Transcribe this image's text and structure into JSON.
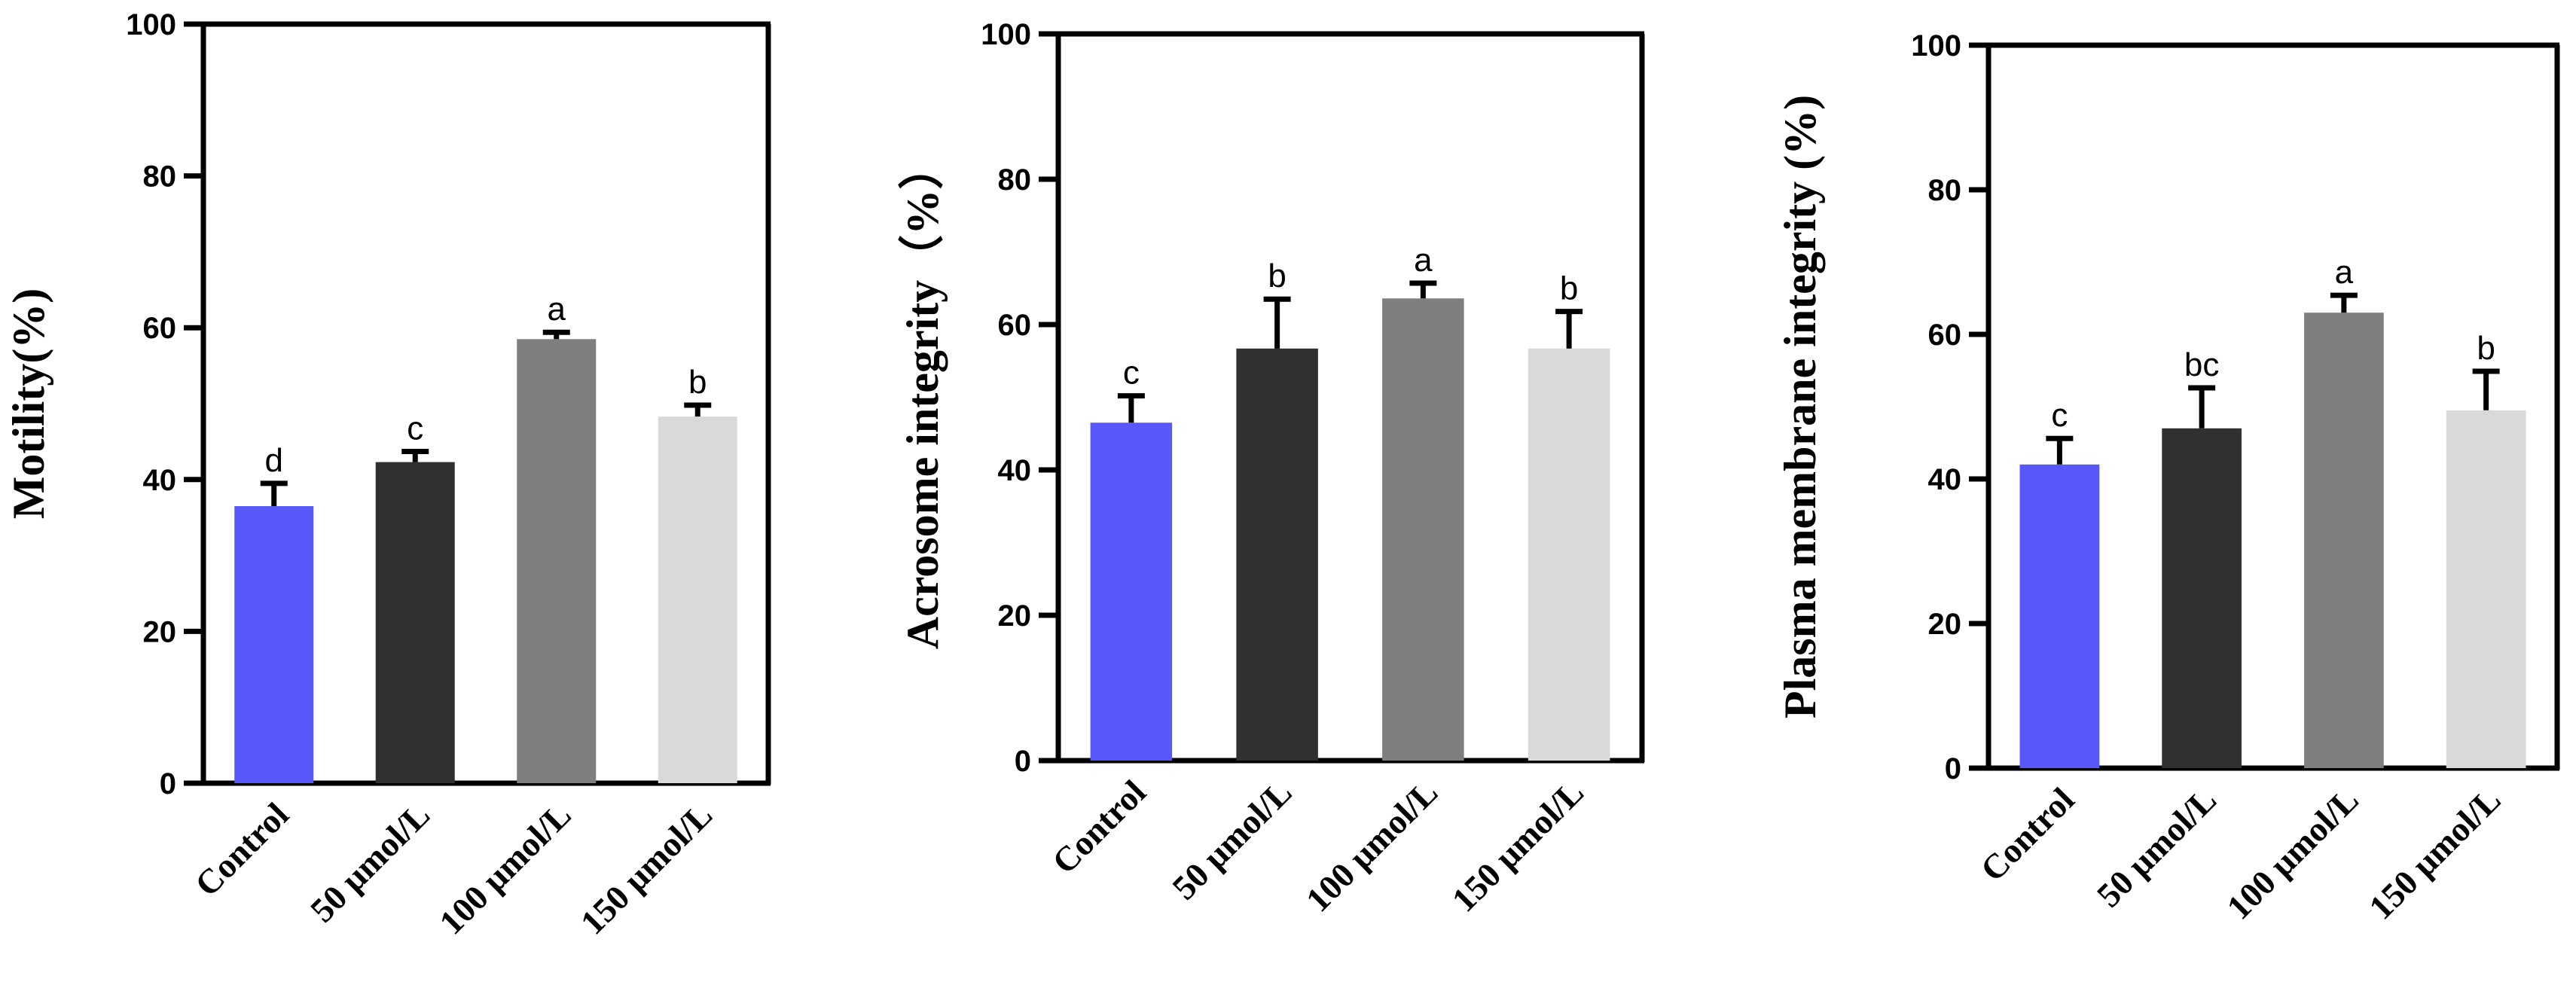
{
  "chart_data": [
    {
      "type": "bar",
      "categories": [
        "Control",
        "50 μmol/L",
        "100 μmol/L",
        "150 μmol/L"
      ],
      "values": [
        36.5,
        42.3,
        58.5,
        48.3
      ],
      "errors": [
        3.0,
        1.4,
        0.9,
        1.5
      ],
      "significance": [
        "d",
        "c",
        "a",
        "b"
      ],
      "colors": [
        "#5858fa",
        "#303030",
        "#7f7f7f",
        "#d9d9d9"
      ],
      "ylabel": "Motility(%)",
      "ylim": [
        0,
        100
      ],
      "yticks": [
        "0",
        "20",
        "40",
        "60",
        "80",
        "100"
      ],
      "grid": false
    },
    {
      "type": "bar",
      "categories": [
        "Control",
        "50 μmol/L",
        "100 μmol/L",
        "150 μmol/L"
      ],
      "values": [
        46.5,
        56.7,
        63.6,
        56.7
      ],
      "errors": [
        3.7,
        6.8,
        2.1,
        5.1
      ],
      "significance": [
        "c",
        "b",
        "a",
        "b"
      ],
      "colors": [
        "#5858fa",
        "#303030",
        "#7f7f7f",
        "#d9d9d9"
      ],
      "ylabel": "Acrosome integrity（%）",
      "ylim": [
        0,
        100
      ],
      "yticks": [
        "0",
        "20",
        "40",
        "60",
        "80",
        "100"
      ],
      "grid": false
    },
    {
      "type": "bar",
      "categories": [
        "Control",
        "50 μmol/L",
        "100 μmol/L",
        "150 μmol/L"
      ],
      "values": [
        42.0,
        47.0,
        63.0,
        49.5
      ],
      "errors": [
        3.6,
        5.6,
        2.4,
        5.4
      ],
      "significance": [
        "c",
        "bc",
        "a",
        "b"
      ],
      "colors": [
        "#5858fa",
        "#303030",
        "#7f7f7f",
        "#d9d9d9"
      ],
      "ylabel": "Plasma membrane integrity (%)",
      "ylim": [
        0,
        100
      ],
      "yticks": [
        "0",
        "20",
        "40",
        "60",
        "80",
        "100"
      ],
      "grid": false
    }
  ]
}
